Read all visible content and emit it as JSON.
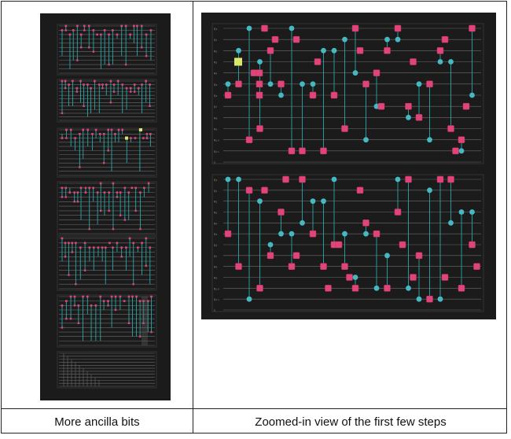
{
  "captions": {
    "left": "More ancilla bits",
    "right": "Zoomed-in view of the first few steps"
  },
  "colors": {
    "panel_bg": "#1b1b1b",
    "gate": "#e0457a",
    "control": "#46b8c1",
    "highlight": "#d9e86a",
    "wire": "#6b6b6b"
  },
  "wire_labels": {
    "block_1": [
      "q₀",
      "q₁",
      "q₂",
      "q₃",
      "q₄",
      "q₅",
      "q₆",
      "q₇",
      "q₈",
      "q₉",
      "q₁₀",
      "q₁₁",
      "c"
    ],
    "block_2": [
      "q₀",
      "q₁",
      "q₂",
      "q₃",
      "q₄",
      "q₅",
      "q₆",
      "q₇",
      "q₈",
      "q₉",
      "q₁₀",
      "q₁₁",
      "c"
    ]
  }
}
